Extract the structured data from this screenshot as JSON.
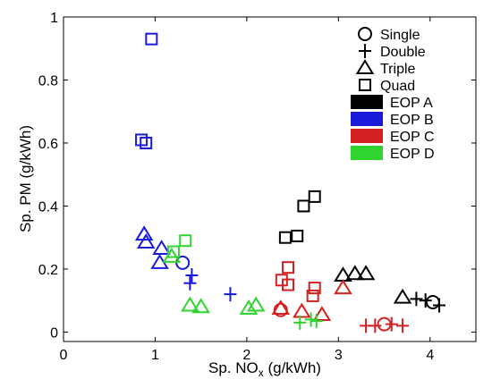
{
  "chart_data": {
    "type": "scatter",
    "xlabel": "Sp. NO",
    "xlabel_sub": "x",
    "xlabel_unit": " (g/kWh)",
    "ylabel": "Sp. PM (g/kWh)",
    "xlim": [
      0,
      4.5
    ],
    "ylim": [
      -0.03,
      1.0
    ],
    "xticks": [
      0,
      1,
      2,
      3,
      4
    ],
    "yticks": [
      0,
      0.2,
      0.4,
      0.6,
      0.8,
      1
    ],
    "xtick_labels": [
      "0",
      "1",
      "2",
      "3",
      "4"
    ],
    "ytick_labels": [
      "0",
      "0.2",
      "0.4",
      "0.6",
      "0.8",
      "1"
    ],
    "grid": false,
    "legend_position": "top-right",
    "marker_legend": [
      {
        "label": "Single",
        "marker": "circle"
      },
      {
        "label": "Double",
        "marker": "plus"
      },
      {
        "label": "Triple",
        "marker": "triangle"
      },
      {
        "label": "Quad",
        "marker": "square"
      }
    ],
    "color_legend": [
      {
        "label": "EOP A",
        "color": "#000000"
      },
      {
        "label": "EOP B",
        "color": "#1a1adb"
      },
      {
        "label": "EOP C",
        "color": "#d42020"
      },
      {
        "label": "EOP D",
        "color": "#2fd42f"
      }
    ],
    "series": [
      {
        "eop": "EOP A",
        "marker": "square",
        "points": [
          [
            2.42,
            0.3
          ],
          [
            2.55,
            0.305
          ],
          [
            2.62,
            0.4
          ],
          [
            2.74,
            0.43
          ]
        ]
      },
      {
        "eop": "EOP A",
        "marker": "triangle",
        "points": [
          [
            3.05,
            0.18
          ],
          [
            3.18,
            0.185
          ],
          [
            3.3,
            0.185
          ],
          [
            3.7,
            0.11
          ]
        ]
      },
      {
        "eop": "EOP A",
        "marker": "plus",
        "points": [
          [
            3.85,
            0.105
          ],
          [
            3.95,
            0.1
          ],
          [
            4.1,
            0.085
          ]
        ]
      },
      {
        "eop": "EOP A",
        "marker": "circle",
        "points": [
          [
            4.03,
            0.095
          ]
        ]
      },
      {
        "eop": "EOP B",
        "marker": "square",
        "points": [
          [
            0.96,
            0.93
          ],
          [
            0.85,
            0.61
          ],
          [
            0.9,
            0.6
          ]
        ]
      },
      {
        "eop": "EOP B",
        "marker": "triangle",
        "points": [
          [
            0.88,
            0.31
          ],
          [
            0.9,
            0.285
          ],
          [
            1.07,
            0.265
          ],
          [
            1.05,
            0.22
          ]
        ]
      },
      {
        "eop": "EOP B",
        "marker": "circle",
        "points": [
          [
            1.3,
            0.22
          ]
        ]
      },
      {
        "eop": "EOP B",
        "marker": "plus",
        "points": [
          [
            1.4,
            0.18
          ],
          [
            1.38,
            0.155
          ],
          [
            1.82,
            0.12
          ]
        ]
      },
      {
        "eop": "EOP C",
        "marker": "square",
        "points": [
          [
            2.38,
            0.165
          ],
          [
            2.45,
            0.205
          ],
          [
            2.45,
            0.15
          ],
          [
            2.72,
            0.115
          ],
          [
            2.74,
            0.14
          ]
        ]
      },
      {
        "eop": "EOP C",
        "marker": "triangle",
        "points": [
          [
            2.37,
            0.075
          ],
          [
            2.6,
            0.065
          ],
          [
            2.82,
            0.055
          ],
          [
            3.05,
            0.14
          ]
        ]
      },
      {
        "eop": "EOP C",
        "marker": "circle",
        "points": [
          [
            2.37,
            0.07
          ],
          [
            3.5,
            0.025
          ]
        ]
      },
      {
        "eop": "EOP C",
        "marker": "plus",
        "points": [
          [
            3.3,
            0.02
          ],
          [
            3.4,
            0.02
          ],
          [
            3.58,
            0.025
          ],
          [
            3.7,
            0.02
          ]
        ]
      },
      {
        "eop": "EOP D",
        "marker": "square",
        "points": [
          [
            1.33,
            0.29
          ],
          [
            1.2,
            0.255
          ]
        ]
      },
      {
        "eop": "EOP D",
        "marker": "triangle",
        "points": [
          [
            1.18,
            0.24
          ],
          [
            1.38,
            0.085
          ],
          [
            1.5,
            0.08
          ],
          [
            2.02,
            0.075
          ],
          [
            2.1,
            0.085
          ]
        ]
      },
      {
        "eop": "EOP D",
        "marker": "plus",
        "points": [
          [
            2.58,
            0.03
          ],
          [
            2.7,
            0.04
          ],
          [
            2.76,
            0.035
          ]
        ]
      }
    ]
  }
}
